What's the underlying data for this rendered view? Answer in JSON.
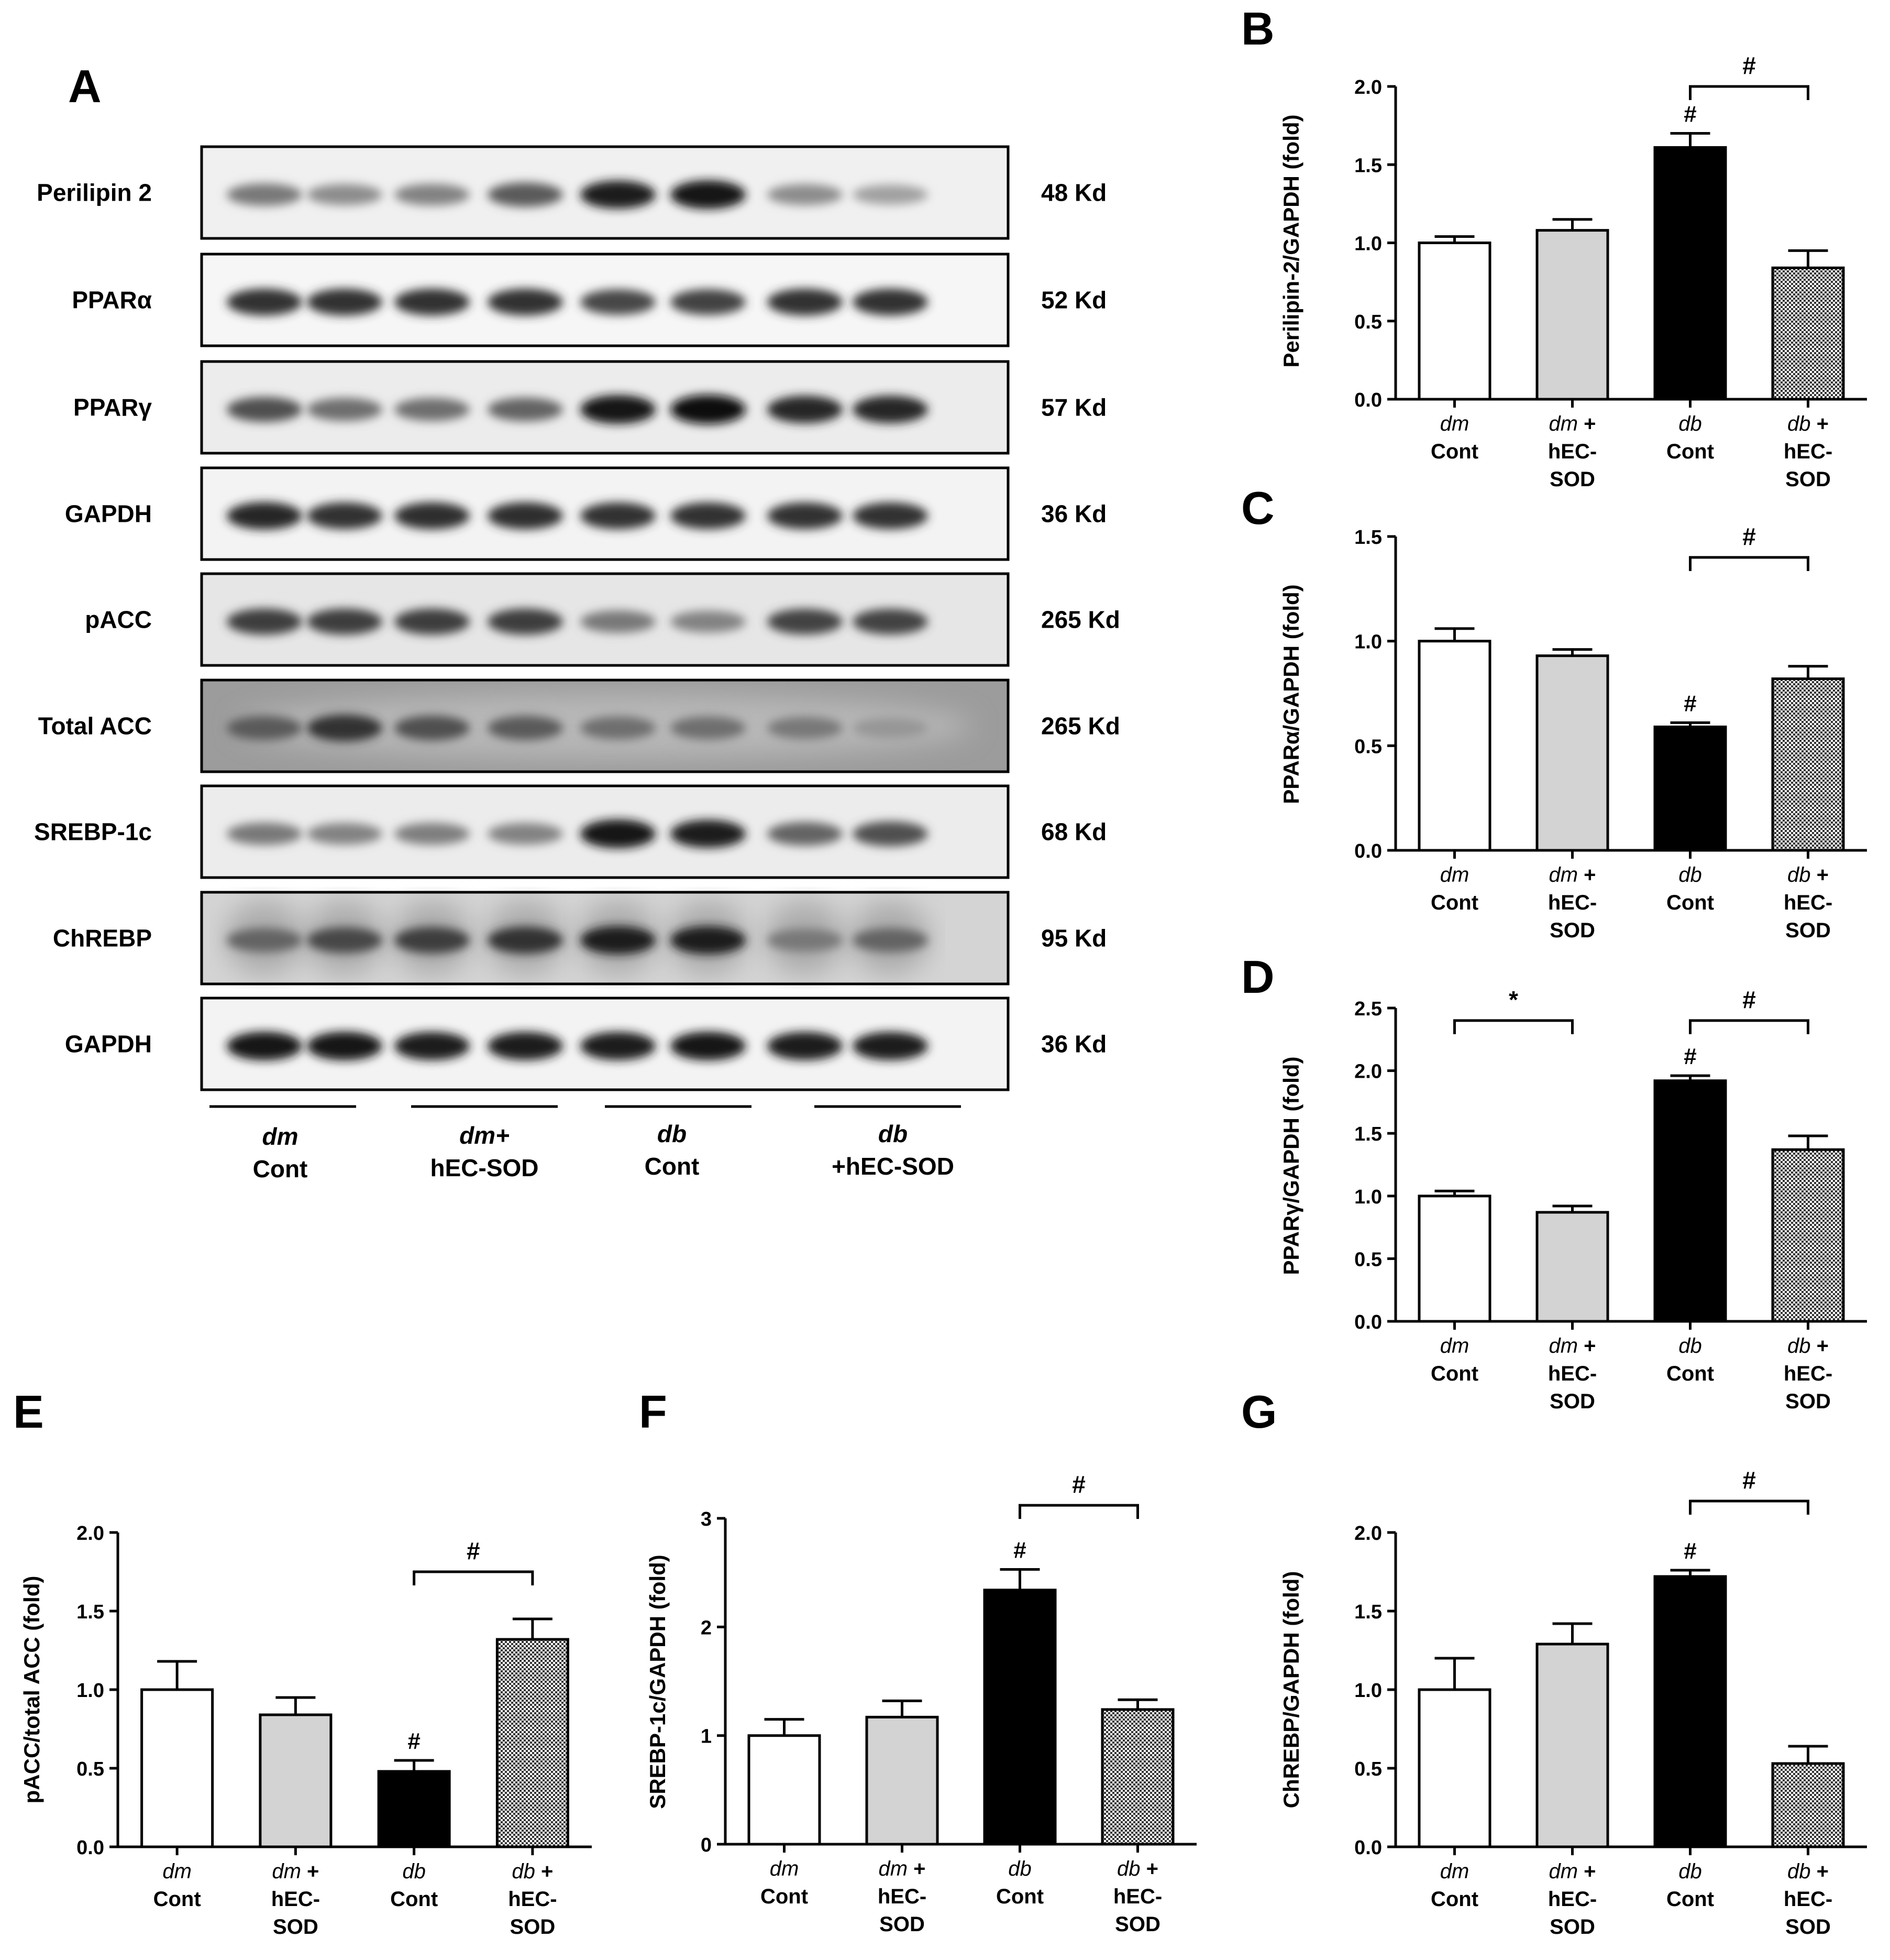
{
  "panel_a": {
    "panel_label": "A",
    "bands": [
      {
        "label": "Perilipin 2",
        "size": "48 Kd"
      },
      {
        "label": "PPARα",
        "size": "52 Kd"
      },
      {
        "label": "PPARγ",
        "size": "57 Kd"
      },
      {
        "label": "GAPDH",
        "size": "36 Kd"
      },
      {
        "label": "pACC",
        "size": "265 Kd"
      },
      {
        "label": "Total ACC",
        "size": "265 Kd"
      },
      {
        "label": "SREBP-1c",
        "size": "68 Kd"
      },
      {
        "label": "ChREBP",
        "size": "95 Kd"
      },
      {
        "label": "GAPDH",
        "size": "36 Kd"
      }
    ],
    "groups": [
      {
        "line1": "dm",
        "line2": "Cont"
      },
      {
        "line1": "dm+",
        "line2": "hEC-SOD"
      },
      {
        "line1": "db",
        "line2": "Cont"
      },
      {
        "line1": "db",
        "line2": "+hEC-SOD"
      }
    ]
  },
  "categories": [
    {
      "it": "dm",
      "rest": "",
      "l2": "Cont",
      "l3": ""
    },
    {
      "it": "dm",
      "rest": " +",
      "l2": "hEC-",
      "l3": "SOD"
    },
    {
      "it": "db",
      "rest": "",
      "l2": "Cont",
      "l3": ""
    },
    {
      "it": "db",
      "rest": " +",
      "l2": "hEC-",
      "l3": "SOD"
    }
  ],
  "colors": {
    "dm_cont": "#ffffff",
    "dm_sod": "#d3d3d3",
    "db_cont": "#000000",
    "db_sod": "#9a9a9a"
  },
  "chart_data": [
    {
      "panel": "B",
      "type": "bar",
      "ylabel": "Perilipin-2/GAPDH (fold)",
      "ylim": [
        0,
        2.0
      ],
      "yticks": [
        "0.0",
        "0.5",
        "1.0",
        "1.5",
        "2.0"
      ],
      "values": [
        1.0,
        1.08,
        1.61,
        0.84
      ],
      "errors": [
        0.04,
        0.07,
        0.09,
        0.11
      ],
      "marks": [
        {
          "bar": 2,
          "text": "#"
        }
      ],
      "brackets": [
        {
          "from": 2,
          "to": 3,
          "y": 2.0,
          "text": "#"
        }
      ]
    },
    {
      "panel": "C",
      "type": "bar",
      "ylabel": "PPARα/GAPDH (fold)",
      "ylim": [
        0,
        1.5
      ],
      "yticks": [
        "0.0",
        "0.5",
        "1.0",
        "1.5"
      ],
      "values": [
        1.0,
        0.93,
        0.59,
        0.82
      ],
      "errors": [
        0.06,
        0.03,
        0.02,
        0.06
      ],
      "marks": [
        {
          "bar": 2,
          "text": "#"
        }
      ],
      "brackets": [
        {
          "from": 2,
          "to": 3,
          "y": 1.4,
          "text": "#"
        }
      ]
    },
    {
      "panel": "D",
      "type": "bar",
      "ylabel": "PPARγ/GAPDH (fold)",
      "ylim": [
        0,
        2.5
      ],
      "yticks": [
        "0.0",
        "0.5",
        "1.0",
        "1.5",
        "2.0",
        "2.5"
      ],
      "values": [
        1.0,
        0.87,
        1.92,
        1.37
      ],
      "errors": [
        0.04,
        0.05,
        0.04,
        0.11
      ],
      "marks": [
        {
          "bar": 2,
          "text": "#"
        }
      ],
      "brackets": [
        {
          "from": 0,
          "to": 1,
          "y": 2.4,
          "text": "*"
        },
        {
          "from": 2,
          "to": 3,
          "y": 2.4,
          "text": "#"
        }
      ]
    },
    {
      "panel": "E",
      "type": "bar",
      "ylabel": "pACC/total ACC (fold)",
      "ylim": [
        0,
        2.0
      ],
      "yticks": [
        "0.0",
        "0.5",
        "1.0",
        "1.5",
        "2.0"
      ],
      "values": [
        1.0,
        0.84,
        0.48,
        1.32
      ],
      "errors": [
        0.18,
        0.11,
        0.07,
        0.13
      ],
      "marks": [
        {
          "bar": 2,
          "text": "#"
        }
      ],
      "brackets": [
        {
          "from": 2,
          "to": 3,
          "y": 1.75,
          "text": "#"
        }
      ]
    },
    {
      "panel": "F",
      "type": "bar",
      "ylabel": "SREBP-1c/GAPDH (fold)",
      "ylim": [
        0,
        3
      ],
      "yticks": [
        "0",
        "1",
        "2",
        "3"
      ],
      "values": [
        1.0,
        1.17,
        2.34,
        1.24
      ],
      "errors": [
        0.15,
        0.15,
        0.19,
        0.09
      ],
      "marks": [
        {
          "bar": 2,
          "text": "#"
        }
      ],
      "brackets": [
        {
          "from": 2,
          "to": 3,
          "y": 3.12,
          "text": "#"
        }
      ]
    },
    {
      "panel": "G",
      "type": "bar",
      "ylabel": "ChREBP/GAPDH (fold)",
      "ylim": [
        0,
        2.0
      ],
      "yticks": [
        "0.0",
        "0.5",
        "1.0",
        "1.5",
        "2.0"
      ],
      "values": [
        1.0,
        1.29,
        1.72,
        0.53
      ],
      "errors": [
        0.2,
        0.13,
        0.04,
        0.11
      ],
      "marks": [
        {
          "bar": 2,
          "text": "#"
        }
      ],
      "brackets": [
        {
          "from": 2,
          "to": 3,
          "y": 2.2,
          "text": "#"
        }
      ]
    }
  ]
}
